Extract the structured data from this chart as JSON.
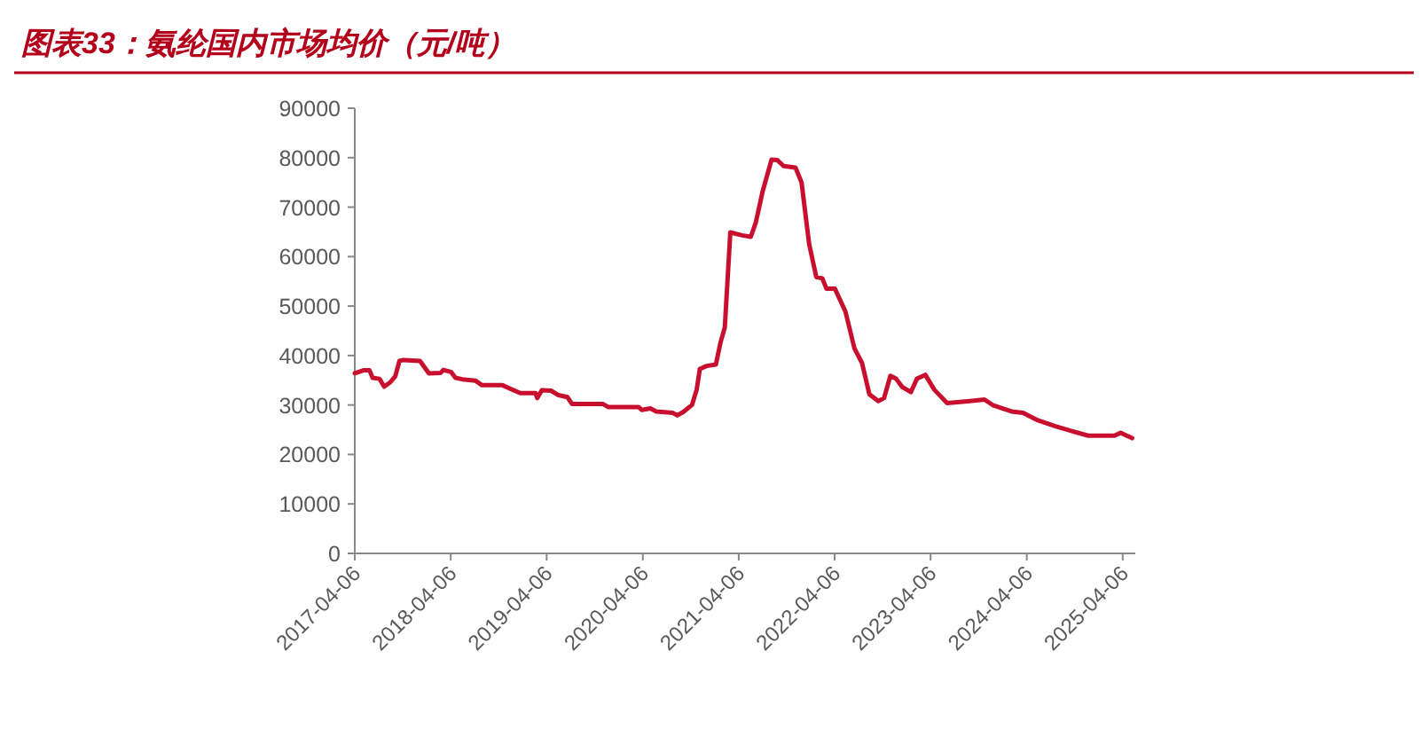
{
  "chart_data": {
    "type": "line",
    "title": "图表33：氨纶国内市场均价（元/吨）",
    "x": [
      "2017-04-06",
      "2017-05-09",
      "2017-06-01",
      "2017-06-13",
      "2017-07-09",
      "2017-07-27",
      "2017-08-19",
      "2017-09-07",
      "2017-09-23",
      "2017-10-08",
      "2017-12-10",
      "2018-01-13",
      "2018-02-27",
      "2018-03-09",
      "2018-04-07",
      "2018-04-24",
      "2018-05-20",
      "2018-07-10",
      "2018-08-03",
      "2018-10-20",
      "2018-12-05",
      "2018-12-27",
      "2019-02-23",
      "2019-03-01",
      "2019-03-19",
      "2019-04-23",
      "2019-05-21",
      "2019-06-24",
      "2019-07-12",
      "2019-11-07",
      "2019-11-26",
      "2020-03-21",
      "2020-04-02",
      "2020-05-05",
      "2020-05-27",
      "2020-07-29",
      "2020-08-15",
      "2020-09-07",
      "2020-10-10",
      "2020-10-28",
      "2020-11-09",
      "2020-12-05",
      "2021-01-09",
      "2021-01-27",
      "2021-02-12",
      "2021-03-05",
      "2021-04-19",
      "2021-05-22",
      "2021-06-10",
      "2021-07-06",
      "2021-08-09",
      "2021-08-31",
      "2021-09-24",
      "2021-11-08",
      "2021-12-01",
      "2021-12-30",
      "2022-01-26",
      "2022-02-18",
      "2022-03-06",
      "2022-04-07",
      "2022-05-17",
      "2022-06-20",
      "2022-07-19",
      "2022-08-16",
      "2022-09-19",
      "2022-10-11",
      "2022-11-04",
      "2022-11-26",
      "2022-12-18",
      "2023-01-21",
      "2023-02-13",
      "2023-03-17",
      "2023-04-20",
      "2023-06-08",
      "2023-09-03",
      "2023-10-28",
      "2023-12-01",
      "2024-02-08",
      "2024-03-23",
      "2024-05-18",
      "2024-07-24",
      "2024-09-19",
      "2024-11-26",
      "2025-03-06",
      "2025-03-29",
      "2025-05-12"
    ],
    "series": [
      {
        "color": "#c8102e",
        "values": [
          36400,
          37000,
          37000,
          35500,
          35300,
          33700,
          34600,
          35800,
          38900,
          39100,
          38900,
          36400,
          36500,
          37100,
          36700,
          35500,
          35200,
          34900,
          34000,
          34000,
          32900,
          32400,
          32400,
          31400,
          33000,
          32900,
          32000,
          31600,
          30200,
          30200,
          29600,
          29600,
          29000,
          29300,
          28700,
          28400,
          27900,
          28600,
          30000,
          33100,
          37300,
          37900,
          38200,
          42700,
          45700,
          64900,
          64300,
          64000,
          66900,
          73200,
          79600,
          79500,
          78300,
          78000,
          75000,
          62500,
          55900,
          55600,
          53500,
          53500,
          48900,
          41500,
          38500,
          32200,
          30800,
          31400,
          35900,
          35300,
          33700,
          32600,
          35300,
          36100,
          33100,
          30400,
          30800,
          31100,
          29900,
          28700,
          28400,
          26900,
          25700,
          24800,
          23800,
          23800,
          24400,
          23300
        ]
      }
    ],
    "xlim": [
      "2017-04-06",
      "2025-05-24"
    ],
    "xticks": [
      "2017-04-06",
      "2018-04-06",
      "2019-04-06",
      "2020-04-06",
      "2021-04-06",
      "2022-04-06",
      "2023-04-06",
      "2024-04-06",
      "2025-04-06"
    ],
    "ylim": [
      0,
      90000
    ],
    "yticks": [
      0,
      10000,
      20000,
      30000,
      40000,
      50000,
      60000,
      70000,
      80000,
      90000
    ],
    "grid": false,
    "marker": "none",
    "line_style": "solid"
  }
}
